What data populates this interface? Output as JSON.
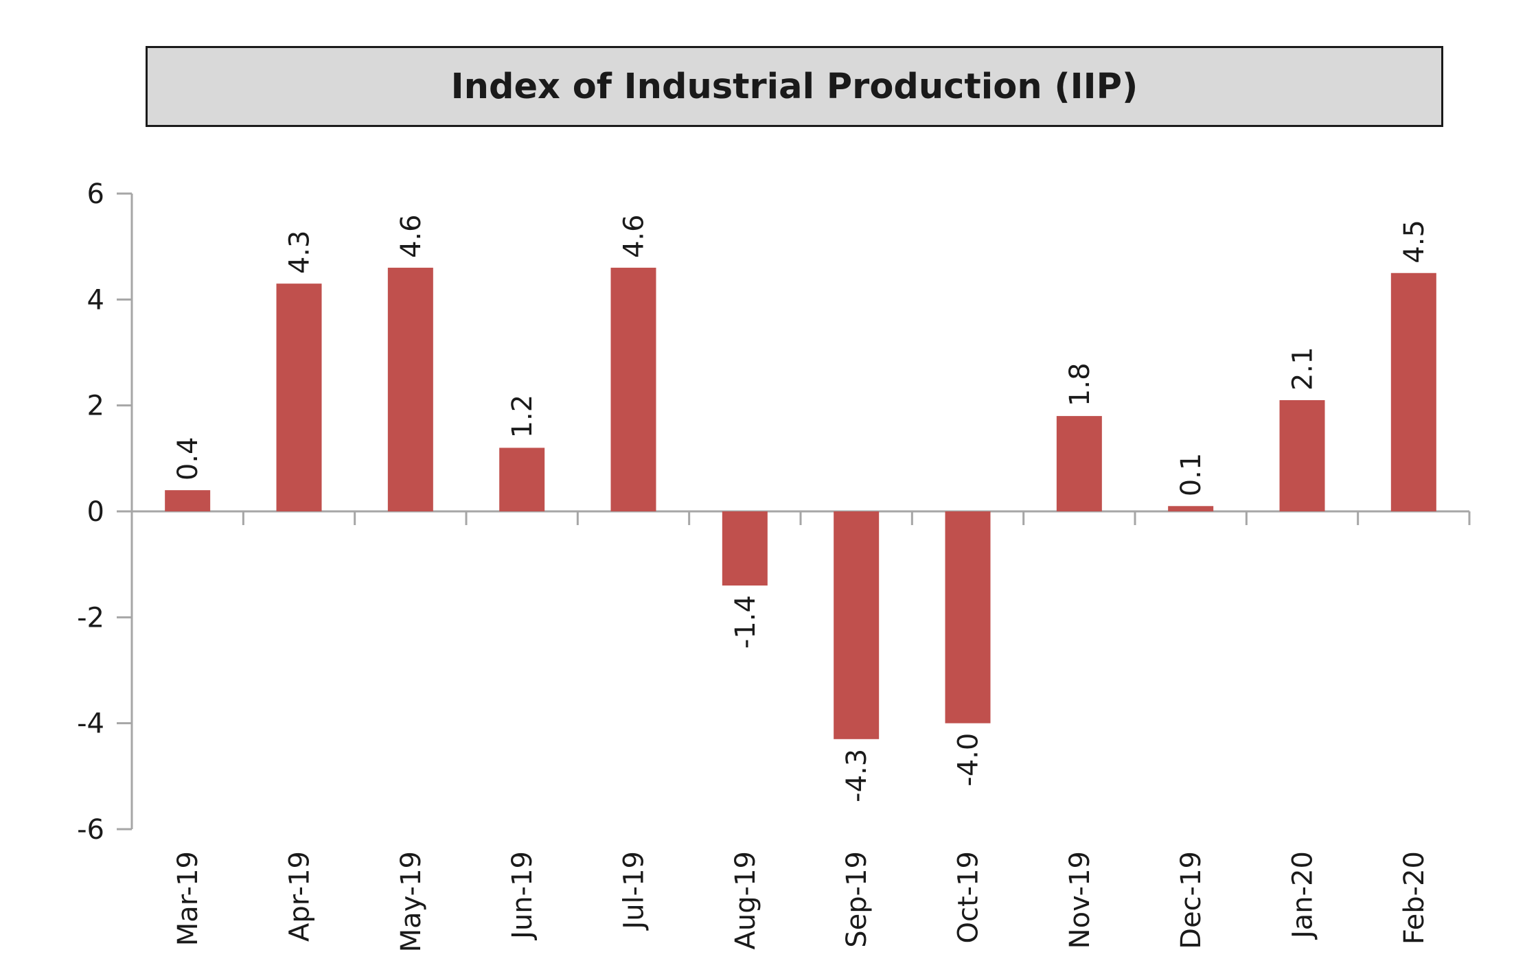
{
  "chart_data": {
    "type": "bar",
    "title": "Index of Industrial Production (IIP)",
    "categories": [
      "Mar-19",
      "Apr-19",
      "May-19",
      "Jun-19",
      "Jul-19",
      "Aug-19",
      "Sep-19",
      "Oct-19",
      "Nov-19",
      "Dec-19",
      "Jan-20",
      "Feb-20"
    ],
    "values": [
      0.4,
      4.3,
      4.6,
      1.2,
      4.6,
      -1.4,
      -4.3,
      -4.0,
      1.8,
      0.1,
      2.1,
      4.5
    ],
    "data_labels": [
      "0.4",
      "4.3",
      "4.6",
      "1.2",
      "4.6",
      "-1.4",
      "-4.3",
      "-4.0",
      "1.8",
      "0.1",
      "2.1",
      "4.5"
    ],
    "ylim": [
      -6,
      6
    ],
    "yticks": [
      -6,
      -4,
      -2,
      0,
      2,
      4,
      6
    ],
    "ytick_labels": [
      "-6",
      "-4",
      "-2",
      "0",
      "2",
      "4",
      "6"
    ],
    "xlabel": "",
    "ylabel": "",
    "grid": false,
    "legend": "none",
    "bar_color": "#c0504d",
    "axis_color": "#a6a6a6"
  }
}
